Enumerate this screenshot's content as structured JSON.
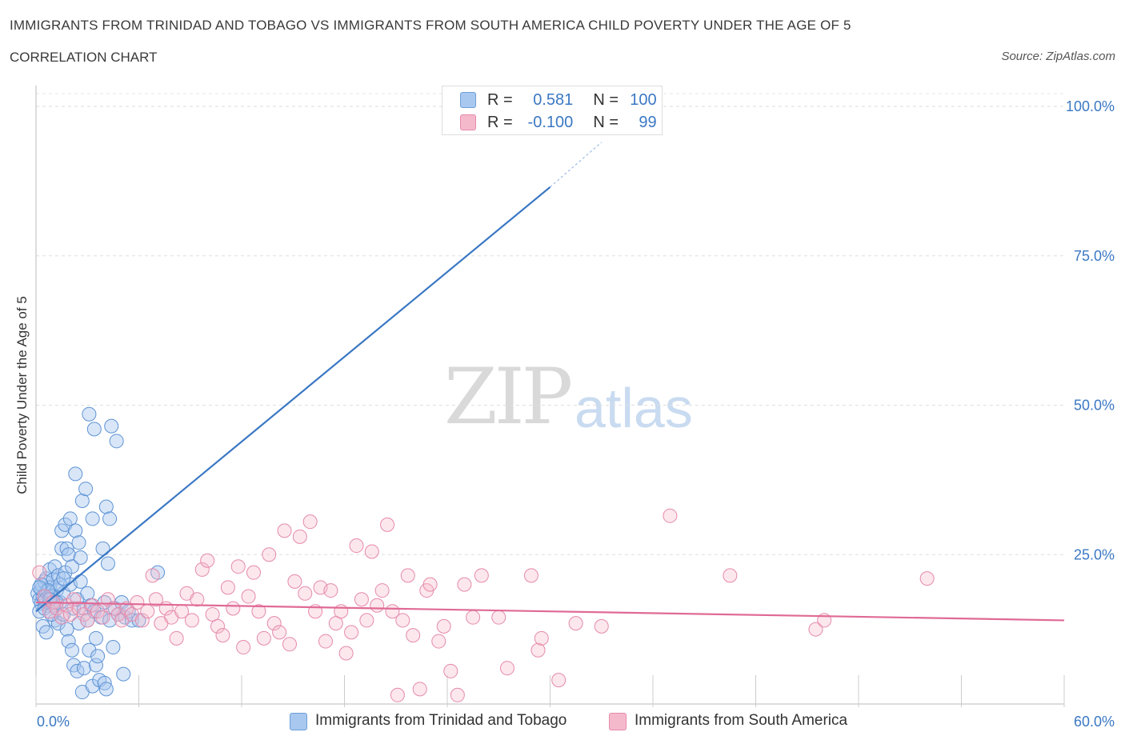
{
  "header": {
    "title": "IMMIGRANTS FROM TRINIDAD AND TOBAGO VS IMMIGRANTS FROM SOUTH AMERICA CHILD POVERTY UNDER THE AGE OF 5",
    "subtitle": "CORRELATION CHART",
    "source": "Source: ZipAtlas.com"
  },
  "watermark": {
    "zip": "ZIP",
    "atlas": "atlas"
  },
  "stats_legend": {
    "rows": [
      {
        "r_label": "R =",
        "r_value": "0.581",
        "n_label": "N =",
        "n_value": "100",
        "color": "#a8c8ef"
      },
      {
        "r_label": "R =",
        "r_value": "-0.100",
        "n_label": "N =",
        "n_value": "99",
        "color": "#f5b9cc"
      }
    ]
  },
  "colors": {
    "blue": "#3b78c3",
    "blue_fill": "#a8c8ef",
    "pink": "#e06a95",
    "pink_fill": "#f5b9cc",
    "tick_text": "#3b78c3"
  },
  "chart_data": {
    "type": "scatter",
    "title": "IMMIGRANTS FROM TRINIDAD AND TOBAGO VS IMMIGRANTS FROM SOUTH AMERICA CHILD POVERTY UNDER THE AGE OF 5",
    "subtitle": "CORRELATION CHART",
    "xlabel": "",
    "ylabel": "Child Poverty Under the Age of 5",
    "xlim": [
      0,
      60
    ],
    "ylim": [
      0,
      100
    ],
    "x_tick_labels": [
      "0.0%",
      "60.0%"
    ],
    "y_ticks": [
      25,
      50,
      75,
      100
    ],
    "y_tick_labels": [
      "25.0%",
      "50.0%",
      "75.0%",
      "100.0%"
    ],
    "grid": true,
    "legend_position": "bottom",
    "series": [
      {
        "name": "Immigrants from Trinidad and Tobago",
        "color": "#3b78c3",
        "trend": {
          "x0": 0,
          "y0": 15.5,
          "x1": 30,
          "y1": 86.5,
          "dash_to_x": 33,
          "dash_to_y": 94
        },
        "points": [
          [
            0.1,
            18.5
          ],
          [
            0.2,
            17.5
          ],
          [
            0.3,
            19.2
          ],
          [
            0.3,
            16.8
          ],
          [
            0.4,
            18.0
          ],
          [
            0.5,
            20.5
          ],
          [
            0.5,
            17.2
          ],
          [
            0.6,
            21.0
          ],
          [
            0.6,
            18.8
          ],
          [
            0.7,
            16.5
          ],
          [
            0.8,
            19.5
          ],
          [
            0.8,
            22.5
          ],
          [
            0.9,
            17.8
          ],
          [
            1.0,
            20.8
          ],
          [
            1.0,
            18.2
          ],
          [
            1.1,
            14.0
          ],
          [
            1.1,
            23.0
          ],
          [
            1.2,
            16.0
          ],
          [
            1.2,
            19.0
          ],
          [
            1.3,
            21.5
          ],
          [
            1.3,
            13.5
          ],
          [
            1.4,
            17.0
          ],
          [
            1.5,
            26.0
          ],
          [
            1.5,
            29.0
          ],
          [
            1.6,
            18.5
          ],
          [
            1.6,
            15.0
          ],
          [
            1.7,
            30.0
          ],
          [
            1.7,
            22.0
          ],
          [
            1.8,
            26.0
          ],
          [
            1.8,
            12.5
          ],
          [
            1.9,
            25.0
          ],
          [
            1.9,
            10.5
          ],
          [
            2.0,
            20.0
          ],
          [
            2.0,
            31.0
          ],
          [
            2.1,
            23.0
          ],
          [
            2.1,
            9.0
          ],
          [
            2.2,
            16.0
          ],
          [
            2.2,
            6.5
          ],
          [
            2.3,
            38.5
          ],
          [
            2.3,
            29.0
          ],
          [
            2.4,
            17.5
          ],
          [
            2.4,
            5.5
          ],
          [
            2.5,
            27.0
          ],
          [
            2.5,
            13.5
          ],
          [
            2.6,
            24.5
          ],
          [
            2.6,
            20.5
          ],
          [
            2.7,
            34.0
          ],
          [
            2.7,
            2.0
          ],
          [
            2.8,
            16.0
          ],
          [
            2.8,
            6.0
          ],
          [
            2.9,
            36.0
          ],
          [
            3.0,
            18.5
          ],
          [
            3.0,
            14.0
          ],
          [
            3.1,
            48.5
          ],
          [
            3.1,
            9.0
          ],
          [
            3.2,
            16.5
          ],
          [
            3.3,
            31.0
          ],
          [
            3.3,
            3.0
          ],
          [
            3.4,
            46.0
          ],
          [
            3.4,
            15.5
          ],
          [
            3.5,
            11.0
          ],
          [
            3.5,
            6.5
          ],
          [
            3.6,
            8.0
          ],
          [
            3.7,
            4.0
          ],
          [
            3.8,
            14.5
          ],
          [
            3.9,
            26.0
          ],
          [
            4.0,
            17.0
          ],
          [
            4.0,
            3.5
          ],
          [
            4.1,
            33.0
          ],
          [
            4.1,
            2.5
          ],
          [
            4.2,
            23.5
          ],
          [
            4.3,
            31.0
          ],
          [
            4.3,
            14.0
          ],
          [
            4.4,
            46.5
          ],
          [
            4.5,
            9.5
          ],
          [
            4.6,
            16.0
          ],
          [
            4.7,
            44.0
          ],
          [
            4.8,
            15.0
          ],
          [
            5.0,
            17.0
          ],
          [
            5.1,
            5.0
          ],
          [
            5.2,
            14.5
          ],
          [
            5.4,
            15.5
          ],
          [
            5.6,
            14.0
          ],
          [
            6.0,
            14.0
          ],
          [
            7.1,
            22.0
          ],
          [
            0.2,
            15.5
          ],
          [
            0.4,
            13.0
          ],
          [
            0.6,
            12.0
          ],
          [
            0.9,
            18.0
          ],
          [
            1.0,
            16.5
          ],
          [
            0.3,
            20.0
          ],
          [
            0.7,
            19.0
          ],
          [
            1.4,
            20.0
          ],
          [
            1.6,
            21.0
          ],
          [
            0.5,
            16.0
          ],
          [
            0.8,
            17.5
          ],
          [
            1.2,
            17.0
          ],
          [
            0.2,
            19.5
          ],
          [
            0.9,
            15.0
          ],
          [
            28.0,
            100.0
          ]
        ]
      },
      {
        "name": "Immigrants from South America",
        "color": "#e06a95",
        "trend": {
          "x0": 0,
          "y0": 17.0,
          "x1": 60,
          "y1": 14.0
        },
        "points": [
          [
            0.2,
            22.0
          ],
          [
            0.5,
            18.0
          ],
          [
            0.8,
            15.5
          ],
          [
            1.0,
            17.0
          ],
          [
            1.2,
            16.0
          ],
          [
            1.5,
            14.5
          ],
          [
            1.8,
            16.5
          ],
          [
            2.0,
            15.0
          ],
          [
            2.2,
            17.5
          ],
          [
            2.5,
            16.0
          ],
          [
            2.8,
            15.0
          ],
          [
            3.0,
            14.0
          ],
          [
            3.3,
            16.5
          ],
          [
            3.6,
            15.5
          ],
          [
            3.9,
            14.5
          ],
          [
            4.2,
            17.5
          ],
          [
            4.5,
            16.0
          ],
          [
            4.8,
            15.0
          ],
          [
            5.0,
            14.0
          ],
          [
            5.3,
            16.0
          ],
          [
            5.6,
            15.0
          ],
          [
            5.9,
            17.0
          ],
          [
            6.2,
            14.0
          ],
          [
            6.5,
            15.5
          ],
          [
            6.8,
            21.5
          ],
          [
            7.0,
            17.5
          ],
          [
            7.3,
            13.5
          ],
          [
            7.6,
            16.0
          ],
          [
            7.9,
            14.5
          ],
          [
            8.2,
            11.0
          ],
          [
            8.5,
            15.5
          ],
          [
            8.8,
            18.5
          ],
          [
            9.1,
            14.0
          ],
          [
            9.4,
            17.5
          ],
          [
            9.7,
            22.5
          ],
          [
            10.0,
            24.0
          ],
          [
            10.3,
            15.0
          ],
          [
            10.6,
            13.0
          ],
          [
            10.9,
            11.5
          ],
          [
            11.2,
            19.5
          ],
          [
            11.5,
            16.0
          ],
          [
            11.8,
            23.0
          ],
          [
            12.1,
            9.5
          ],
          [
            12.4,
            18.0
          ],
          [
            12.7,
            22.0
          ],
          [
            13.0,
            15.5
          ],
          [
            13.3,
            11.0
          ],
          [
            13.6,
            25.0
          ],
          [
            13.9,
            13.5
          ],
          [
            14.2,
            12.0
          ],
          [
            14.5,
            29.0
          ],
          [
            14.8,
            10.0
          ],
          [
            15.1,
            20.5
          ],
          [
            15.4,
            28.0
          ],
          [
            15.7,
            18.5
          ],
          [
            16.0,
            30.5
          ],
          [
            16.3,
            15.5
          ],
          [
            16.6,
            19.5
          ],
          [
            16.9,
            10.5
          ],
          [
            17.2,
            19.0
          ],
          [
            17.5,
            13.5
          ],
          [
            17.8,
            15.5
          ],
          [
            18.1,
            8.5
          ],
          [
            18.4,
            12.0
          ],
          [
            18.7,
            26.5
          ],
          [
            19.0,
            17.5
          ],
          [
            19.3,
            14.0
          ],
          [
            19.6,
            25.5
          ],
          [
            19.9,
            16.5
          ],
          [
            20.2,
            19.0
          ],
          [
            20.5,
            30.0
          ],
          [
            20.8,
            15.5
          ],
          [
            21.1,
            1.5
          ],
          [
            21.4,
            14.0
          ],
          [
            21.7,
            21.5
          ],
          [
            22.0,
            11.5
          ],
          [
            22.4,
            2.5
          ],
          [
            22.8,
            19.0
          ],
          [
            23.0,
            20.0
          ],
          [
            23.5,
            10.5
          ],
          [
            23.8,
            13.0
          ],
          [
            24.2,
            5.5
          ],
          [
            24.6,
            1.5
          ],
          [
            25.0,
            20.0
          ],
          [
            25.5,
            14.5
          ],
          [
            26.0,
            21.5
          ],
          [
            27.0,
            14.5
          ],
          [
            27.5,
            6.0
          ],
          [
            28.9,
            21.5
          ],
          [
            29.3,
            9.0
          ],
          [
            29.5,
            11.0
          ],
          [
            30.5,
            4.0
          ],
          [
            31.5,
            13.5
          ],
          [
            33.0,
            13.0
          ],
          [
            37.0,
            31.5
          ],
          [
            40.5,
            21.5
          ],
          [
            45.5,
            12.5
          ],
          [
            46.0,
            14.0
          ],
          [
            52.0,
            21.0
          ]
        ]
      }
    ]
  },
  "bottom_legend": [
    {
      "label": "Immigrants from Trinidad and Tobago",
      "color": "#a8c8ef",
      "border": "#6f9fd8"
    },
    {
      "label": "Immigrants from South America",
      "color": "#f5b9cc",
      "border": "#e58aab"
    }
  ]
}
